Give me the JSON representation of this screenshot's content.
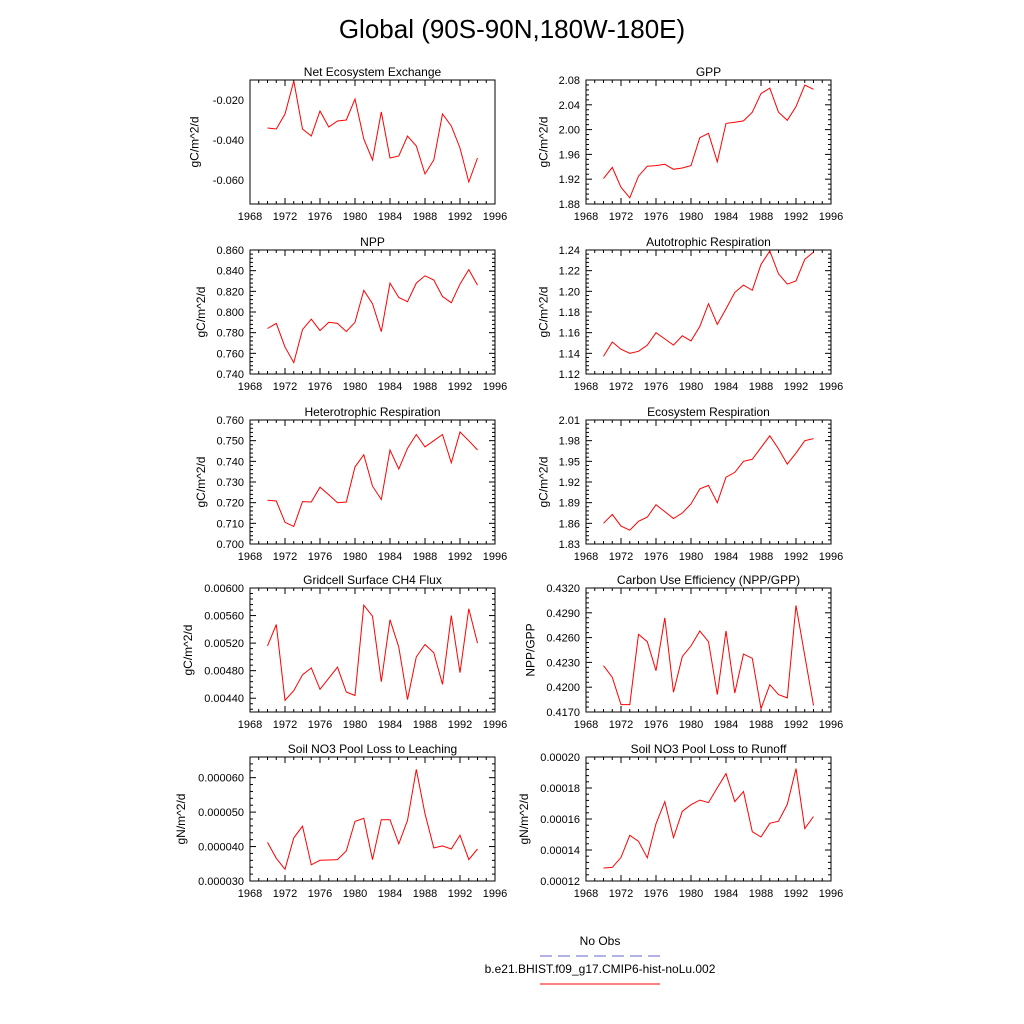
{
  "title": "Global (90S-90N,180W-180E)",
  "legend": {
    "items": [
      {
        "label": "No Obs",
        "color": "#6666cc",
        "style": "dashed"
      },
      {
        "label": "b.e21.BHIST.f09_g17.CMIP6-hist-noLu.002",
        "color": "#ff0000",
        "style": "solid"
      }
    ]
  },
  "chart_data": [
    {
      "type": "line",
      "title": "Net Ecosystem Exchange",
      "ylabel": "gC/m^2/d",
      "xlim": [
        1968,
        1996
      ],
      "xticks": [
        "1968",
        "1972",
        "1976",
        "1980",
        "1984",
        "1988",
        "1992",
        "1996"
      ],
      "ylim": [
        -0.072,
        -0.01
      ],
      "yticks": [
        "-0.020",
        "-0.040",
        "-0.060"
      ],
      "ytick_values": [
        -0.02,
        -0.04,
        -0.06
      ],
      "series": [
        {
          "color": "#ff0000",
          "x": [
            1970,
            1971,
            1972,
            1973,
            1974,
            1975,
            1976,
            1977,
            1978,
            1979,
            1980,
            1981,
            1982,
            1983,
            1984,
            1985,
            1986,
            1987,
            1988,
            1989,
            1990,
            1991,
            1992,
            1993,
            1994
          ],
          "y": [
            -0.034,
            -0.0345,
            -0.027,
            -0.0105,
            -0.0345,
            -0.038,
            -0.0255,
            -0.0335,
            -0.0305,
            -0.03,
            -0.0195,
            -0.0395,
            -0.05,
            -0.026,
            -0.049,
            -0.048,
            -0.038,
            -0.043,
            -0.057,
            -0.05,
            -0.027,
            -0.033,
            -0.044,
            -0.061,
            -0.049
          ]
        }
      ]
    },
    {
      "type": "line",
      "title": "GPP",
      "ylabel": "gC/m^2/d",
      "xlim": [
        1968,
        1996
      ],
      "xticks": [
        "1968",
        "1972",
        "1976",
        "1980",
        "1984",
        "1988",
        "1992",
        "1996"
      ],
      "ylim": [
        1.88,
        2.08
      ],
      "yticks": [
        "1.88",
        "1.92",
        "1.96",
        "2.00",
        "2.04",
        "2.08"
      ],
      "ytick_values": [
        1.88,
        1.92,
        1.96,
        2.0,
        2.04,
        2.08
      ],
      "series": [
        {
          "color": "#ff0000",
          "x": [
            1970,
            1971,
            1972,
            1973,
            1974,
            1975,
            1976,
            1977,
            1978,
            1979,
            1980,
            1981,
            1982,
            1983,
            1984,
            1985,
            1986,
            1987,
            1988,
            1989,
            1990,
            1991,
            1992,
            1993,
            1994
          ],
          "y": [
            1.921,
            1.939,
            1.907,
            1.89,
            1.925,
            1.941,
            1.942,
            1.944,
            1.936,
            1.938,
            1.942,
            1.987,
            1.994,
            1.948,
            2.01,
            2.012,
            2.014,
            2.028,
            2.058,
            2.067,
            2.028,
            2.015,
            2.037,
            2.072,
            2.065
          ]
        }
      ]
    },
    {
      "type": "line",
      "title": "NPP",
      "ylabel": "gC/m^2/d",
      "xlim": [
        1968,
        1996
      ],
      "xticks": [
        "1968",
        "1972",
        "1976",
        "1980",
        "1984",
        "1988",
        "1992",
        "1996"
      ],
      "ylim": [
        0.74,
        0.86
      ],
      "yticks": [
        "0.740",
        "0.760",
        "0.780",
        "0.800",
        "0.820",
        "0.840",
        "0.860"
      ],
      "ytick_values": [
        0.74,
        0.76,
        0.78,
        0.8,
        0.82,
        0.84,
        0.86
      ],
      "series": [
        {
          "color": "#ff0000",
          "x": [
            1970,
            1971,
            1972,
            1973,
            1974,
            1975,
            1976,
            1977,
            1978,
            1979,
            1980,
            1981,
            1982,
            1983,
            1984,
            1985,
            1986,
            1987,
            1988,
            1989,
            1990,
            1991,
            1992,
            1993,
            1994
          ],
          "y": [
            0.784,
            0.789,
            0.766,
            0.751,
            0.783,
            0.793,
            0.782,
            0.79,
            0.789,
            0.781,
            0.79,
            0.821,
            0.808,
            0.781,
            0.828,
            0.814,
            0.81,
            0.828,
            0.835,
            0.831,
            0.815,
            0.809,
            0.827,
            0.841,
            0.826
          ]
        }
      ]
    },
    {
      "type": "line",
      "title": "Autotrophic Respiration",
      "ylabel": "gC/m^2/d",
      "xlim": [
        1968,
        1996
      ],
      "xticks": [
        "1968",
        "1972",
        "1976",
        "1980",
        "1984",
        "1988",
        "1992",
        "1996"
      ],
      "ylim": [
        1.12,
        1.24
      ],
      "yticks": [
        "1.12",
        "1.14",
        "1.16",
        "1.18",
        "1.20",
        "1.22",
        "1.24"
      ],
      "ytick_values": [
        1.12,
        1.14,
        1.16,
        1.18,
        1.2,
        1.22,
        1.24
      ],
      "series": [
        {
          "color": "#ff0000",
          "x": [
            1970,
            1971,
            1972,
            1973,
            1974,
            1975,
            1976,
            1977,
            1978,
            1979,
            1980,
            1981,
            1982,
            1983,
            1984,
            1985,
            1986,
            1987,
            1988,
            1989,
            1990,
            1991,
            1992,
            1993,
            1994
          ],
          "y": [
            1.137,
            1.151,
            1.144,
            1.14,
            1.142,
            1.148,
            1.16,
            1.154,
            1.148,
            1.157,
            1.152,
            1.166,
            1.188,
            1.168,
            1.183,
            1.199,
            1.206,
            1.201,
            1.226,
            1.239,
            1.217,
            1.207,
            1.21,
            1.231,
            1.238
          ]
        }
      ]
    },
    {
      "type": "line",
      "title": "Heterotrophic Respiration",
      "ylabel": "gC/m^2/d",
      "xlim": [
        1968,
        1996
      ],
      "xticks": [
        "1968",
        "1972",
        "1976",
        "1980",
        "1984",
        "1988",
        "1992",
        "1996"
      ],
      "ylim": [
        0.7,
        0.76
      ],
      "yticks": [
        "0.700",
        "0.710",
        "0.720",
        "0.730",
        "0.740",
        "0.750",
        "0.760"
      ],
      "ytick_values": [
        0.7,
        0.71,
        0.72,
        0.73,
        0.74,
        0.75,
        0.76
      ],
      "series": [
        {
          "color": "#ff0000",
          "x": [
            1970,
            1971,
            1972,
            1973,
            1974,
            1975,
            1976,
            1977,
            1978,
            1979,
            1980,
            1981,
            1982,
            1983,
            1984,
            1985,
            1986,
            1987,
            1988,
            1989,
            1990,
            1991,
            1992,
            1993,
            1994
          ],
          "y": [
            0.7212,
            0.7208,
            0.7105,
            0.7085,
            0.7205,
            0.7203,
            0.7275,
            0.7238,
            0.72,
            0.7203,
            0.7373,
            0.7432,
            0.728,
            0.7215,
            0.7455,
            0.7363,
            0.7463,
            0.753,
            0.747,
            0.75,
            0.753,
            0.7393,
            0.7542,
            0.75,
            0.7455
          ]
        }
      ]
    },
    {
      "type": "line",
      "title": "Ecosystem Respiration",
      "ylabel": "gC/m^2/d",
      "xlim": [
        1968,
        1996
      ],
      "xticks": [
        "1968",
        "1972",
        "1976",
        "1980",
        "1984",
        "1988",
        "1992",
        "1996"
      ],
      "ylim": [
        1.83,
        2.01
      ],
      "yticks": [
        "1.83",
        "1.86",
        "1.89",
        "1.92",
        "1.95",
        "1.98",
        "2.01"
      ],
      "ytick_values": [
        1.83,
        1.86,
        1.89,
        1.92,
        1.95,
        1.98,
        2.01
      ],
      "series": [
        {
          "color": "#ff0000",
          "x": [
            1970,
            1971,
            1972,
            1973,
            1974,
            1975,
            1976,
            1977,
            1978,
            1979,
            1980,
            1981,
            1982,
            1983,
            1984,
            1985,
            1986,
            1987,
            1988,
            1989,
            1990,
            1991,
            1992,
            1993,
            1994
          ],
          "y": [
            1.86,
            1.873,
            1.856,
            1.85,
            1.863,
            1.869,
            1.887,
            1.877,
            1.867,
            1.875,
            1.888,
            1.91,
            1.915,
            1.89,
            1.927,
            1.934,
            1.95,
            1.953,
            1.97,
            1.987,
            1.968,
            1.946,
            1.962,
            1.98,
            1.983
          ]
        }
      ]
    },
    {
      "type": "line",
      "title": "Gridcell Surface CH4 Flux",
      "ylabel": "gC/m^2/d",
      "xlim": [
        1968,
        1996
      ],
      "xticks": [
        "1968",
        "1972",
        "1976",
        "1980",
        "1984",
        "1988",
        "1992",
        "1996"
      ],
      "ylim": [
        0.0042,
        0.006
      ],
      "yticks": [
        "0.00440",
        "0.00480",
        "0.00520",
        "0.00560",
        "0.00600"
      ],
      "ytick_values": [
        0.0044,
        0.0048,
        0.0052,
        0.0056,
        0.006
      ],
      "series": [
        {
          "color": "#ff0000",
          "x": [
            1970,
            1971,
            1972,
            1973,
            1974,
            1975,
            1976,
            1977,
            1978,
            1979,
            1980,
            1981,
            1982,
            1983,
            1984,
            1985,
            1986,
            1987,
            1988,
            1989,
            1990,
            1991,
            1992,
            1993,
            1994
          ],
          "y": [
            0.00516,
            0.00547,
            0.00437,
            0.00451,
            0.00474,
            0.00484,
            0.00453,
            0.00469,
            0.00485,
            0.00449,
            0.00444,
            0.00575,
            0.00559,
            0.00464,
            0.00554,
            0.00514,
            0.00438,
            0.005,
            0.00518,
            0.00506,
            0.0046,
            0.0056,
            0.00477,
            0.0057,
            0.0052
          ]
        }
      ]
    },
    {
      "type": "line",
      "title": "Carbon Use Efficiency (NPP/GPP)",
      "ylabel": "NPP/GPP",
      "xlim": [
        1968,
        1996
      ],
      "xticks": [
        "1968",
        "1972",
        "1976",
        "1980",
        "1984",
        "1988",
        "1992",
        "1996"
      ],
      "ylim": [
        0.417,
        0.432
      ],
      "yticks": [
        "0.4170",
        "0.4200",
        "0.4230",
        "0.4260",
        "0.4290",
        "0.4320"
      ],
      "ytick_values": [
        0.417,
        0.42,
        0.423,
        0.426,
        0.429,
        0.432
      ],
      "series": [
        {
          "color": "#ff0000",
          "x": [
            1970,
            1971,
            1972,
            1973,
            1974,
            1975,
            1976,
            1977,
            1978,
            1979,
            1980,
            1981,
            1982,
            1983,
            1984,
            1985,
            1986,
            1987,
            1988,
            1989,
            1990,
            1991,
            1992,
            1993,
            1994
          ],
          "y": [
            0.4226,
            0.4212,
            0.4179,
            0.4179,
            0.4264,
            0.4255,
            0.422,
            0.4284,
            0.4194,
            0.4237,
            0.425,
            0.4268,
            0.4255,
            0.4191,
            0.4268,
            0.4193,
            0.424,
            0.4235,
            0.4174,
            0.4203,
            0.4191,
            0.4187,
            0.4299,
            0.4238,
            0.4178
          ]
        }
      ]
    },
    {
      "type": "line",
      "title": "Soil NO3 Pool Loss to Leaching",
      "ylabel": "gN/m^2/d",
      "xlim": [
        1968,
        1996
      ],
      "xticks": [
        "1968",
        "1972",
        "1976",
        "1980",
        "1984",
        "1988",
        "1992",
        "1996"
      ],
      "ylim": [
        3e-05,
        6.6e-05
      ],
      "yticks": [
        "0.000030",
        "0.000040",
        "0.000050",
        "0.000060"
      ],
      "ytick_values": [
        3e-05,
        4e-05,
        5e-05,
        6e-05
      ],
      "series": [
        {
          "color": "#ff0000",
          "x": [
            1970,
            1971,
            1972,
            1973,
            1974,
            1975,
            1976,
            1977,
            1978,
            1979,
            1980,
            1981,
            1982,
            1983,
            1984,
            1985,
            1986,
            1987,
            1988,
            1989,
            1990,
            1991,
            1992,
            1993,
            1994
          ],
          "y": [
            4.12e-05,
            3.66e-05,
            3.34e-05,
            4.25e-05,
            4.59e-05,
            3.47e-05,
            3.6e-05,
            3.61e-05,
            3.62e-05,
            3.87e-05,
            4.73e-05,
            4.82e-05,
            3.62e-05,
            4.78e-05,
            4.78e-05,
            4.08e-05,
            4.76e-05,
            6.24e-05,
            4.95e-05,
            3.96e-05,
            4.02e-05,
            3.93e-05,
            4.33e-05,
            3.62e-05,
            3.93e-05
          ]
        }
      ]
    },
    {
      "type": "line",
      "title": "Soil NO3 Pool Loss to Runoff",
      "ylabel": "gN/m^2/d",
      "xlim": [
        1968,
        1996
      ],
      "xticks": [
        "1968",
        "1972",
        "1976",
        "1980",
        "1984",
        "1988",
        "1992",
        "1996"
      ],
      "ylim": [
        0.00012,
        0.0002
      ],
      "yticks": [
        "0.00012",
        "0.00014",
        "0.00016",
        "0.00018",
        "0.00020"
      ],
      "ytick_values": [
        0.00012,
        0.00014,
        0.00016,
        0.00018,
        0.0002
      ],
      "series": [
        {
          "color": "#ff0000",
          "x": [
            1970,
            1971,
            1972,
            1973,
            1974,
            1975,
            1976,
            1977,
            1978,
            1979,
            1980,
            1981,
            1982,
            1983,
            1984,
            1985,
            1986,
            1987,
            1988,
            1989,
            1990,
            1991,
            1992,
            1993,
            1994
          ],
          "y": [
            0.0001284,
            0.0001288,
            0.0001352,
            0.0001495,
            0.0001456,
            0.000135,
            0.0001569,
            0.0001712,
            0.000148,
            0.000165,
            0.0001692,
            0.0001722,
            0.0001706,
            0.0001802,
            0.0001893,
            0.0001712,
            0.0001777,
            0.0001518,
            0.0001484,
            0.0001572,
            0.0001586,
            0.0001694,
            0.0001925,
            0.0001538,
            0.0001616
          ]
        }
      ]
    }
  ]
}
